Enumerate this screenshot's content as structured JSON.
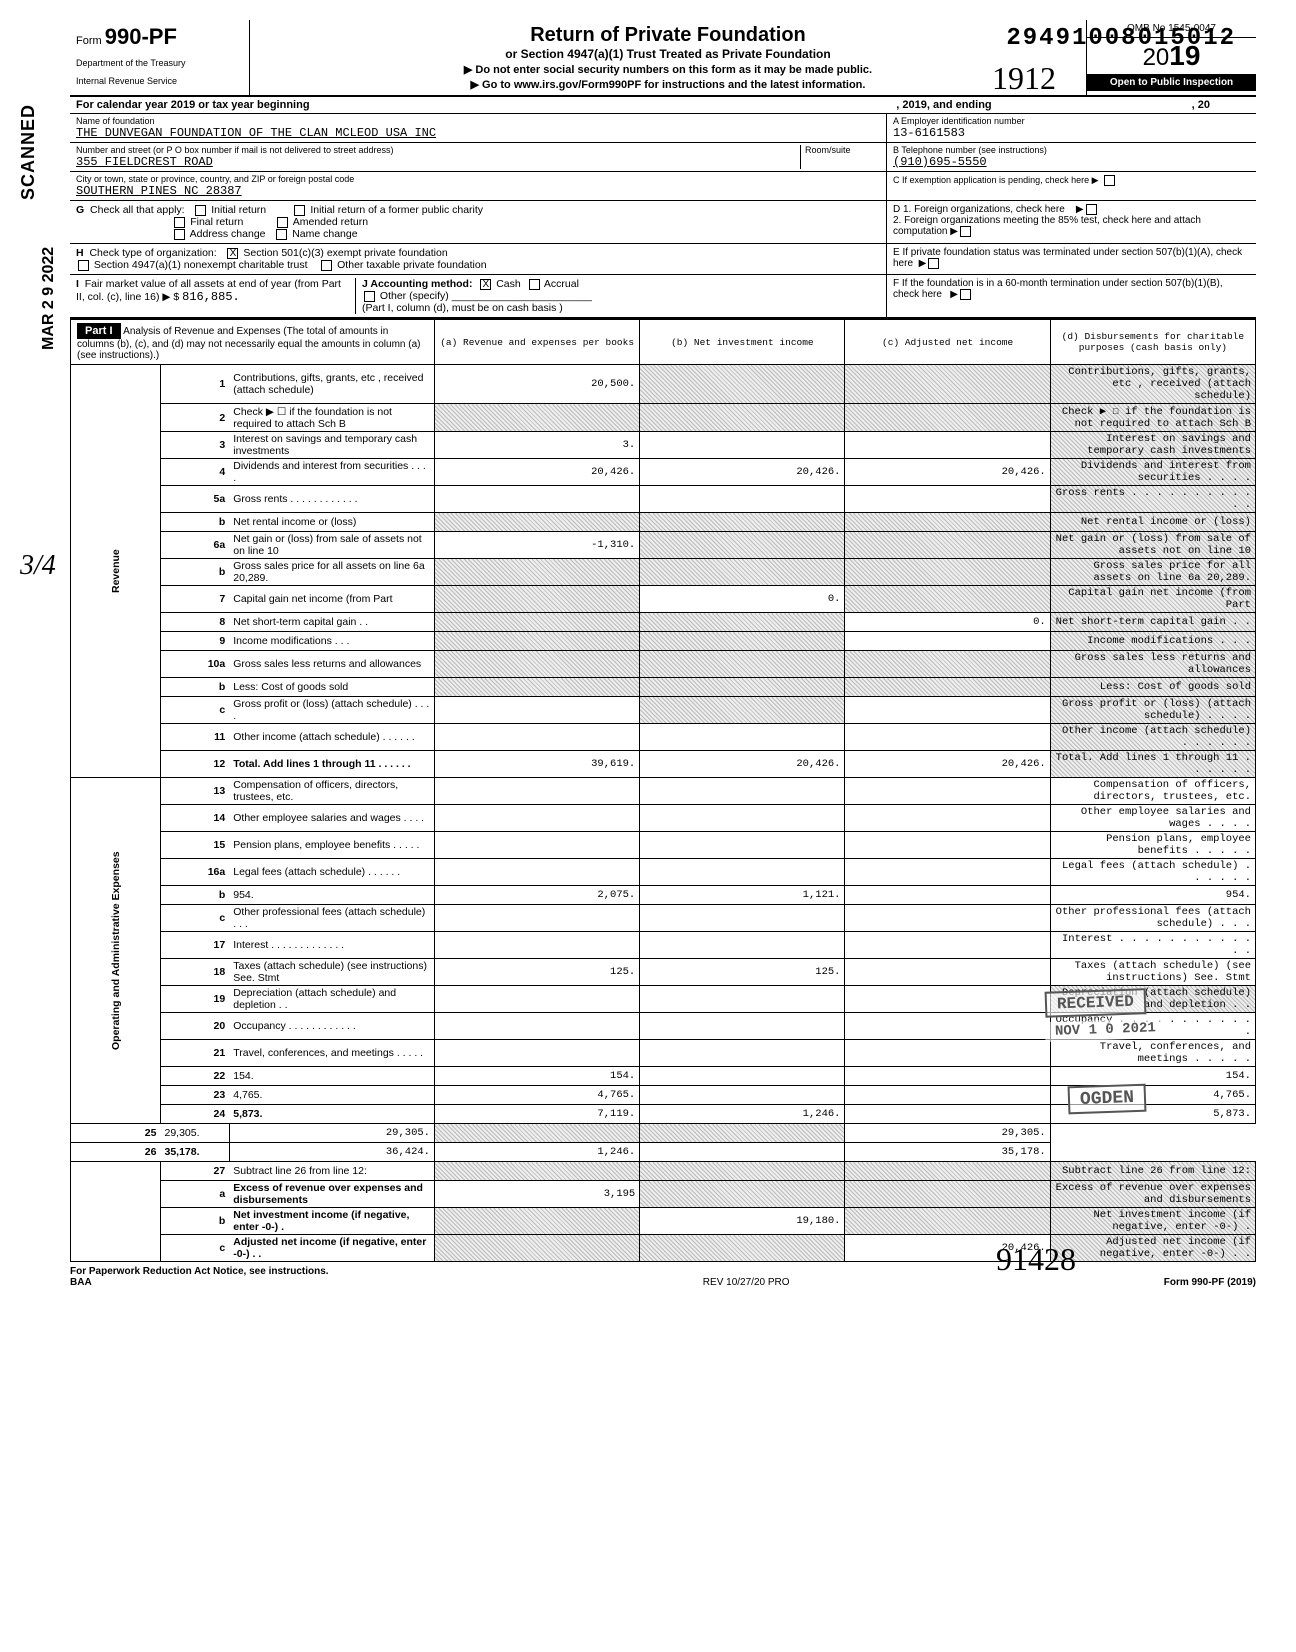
{
  "dln": "29491008015012",
  "scanned_label": "SCANNED",
  "scanned_date": "MAR 2 9 2022",
  "fraction": "3/4",
  "header": {
    "form_prefix": "Form",
    "form_number": "990-PF",
    "dept1": "Department of the Treasury",
    "dept2": "Internal Revenue Service",
    "title": "Return of Private Foundation",
    "subtitle": "or Section 4947(a)(1) Trust Treated as Private Foundation",
    "note1": "▶ Do not enter social security numbers on this form as it may be made public.",
    "note2": "▶ Go to www.irs.gov/Form990PF for instructions and the latest information.",
    "omb": "OMB No  1545-0047",
    "year_prefix": "20",
    "year_bold": "19",
    "open": "Open to Public Inspection"
  },
  "cal": {
    "text1": "For calendar year 2019 or tax year beginning",
    "text2": ", 2019, and ending",
    "text3": ", 20"
  },
  "info": {
    "name_lbl": "Name of foundation",
    "name_val": "THE DUNVEGAN FOUNDATION OF THE CLAN MCLEOD USA INC",
    "addr_lbl": "Number and street (or P O  box number if mail is not delivered to street address)",
    "addr_val": "355 FIELDCREST ROAD",
    "room_lbl": "Room/suite",
    "city_lbl": "City or town, state or province, country, and ZIP or foreign postal code",
    "city_val": "SOUTHERN PINES NC 28387",
    "ein_lbl": "A  Employer identification number",
    "ein_val": "13-6161583",
    "tel_lbl": "B  Telephone number (see instructions)",
    "tel_val": "(910)695-5550",
    "c_lbl": "C  If exemption application is pending, check here ▶"
  },
  "g": {
    "letter": "G",
    "label": "Check all that apply:",
    "opt1": "Initial return",
    "opt2": "Final return",
    "opt3": "Address change",
    "opt4": "Initial return of a former public charity",
    "opt5": "Amended return",
    "opt6": "Name change",
    "d1": "D  1. Foreign organizations, check here",
    "d2": "2. Foreign organizations meeting the 85% test, check here and attach computation"
  },
  "h": {
    "letter": "H",
    "label": "Check type of organization:",
    "opt1": "Section 501(c)(3) exempt private foundation",
    "opt2": "Section 4947(a)(1) nonexempt charitable trust",
    "opt3": "Other taxable private foundation",
    "e": "E  If private foundation status was terminated under section 507(b)(1)(A), check here"
  },
  "i": {
    "letter": "I",
    "label1": "Fair market value of all assets at end of year  (from Part II, col. (c), line 16) ▶ $",
    "fmv": "816,885.",
    "j": "J   Accounting method:",
    "cash": "Cash",
    "accrual": "Accrual",
    "other": "Other (specify)",
    "note": "(Part I, column (d), must be on cash basis )",
    "f": "F  If the foundation is in a 60-month termination under section 507(b)(1)(B), check here"
  },
  "part1": {
    "label": "Part I",
    "desc": "Analysis of Revenue and Expenses (The total of amounts in columns (b), (c), and (d) may not necessarily equal the amounts in column (a) (see instructions).)",
    "col_a": "(a) Revenue and expenses per books",
    "col_b": "(b) Net investment income",
    "col_c": "(c) Adjusted net income",
    "col_d": "(d) Disbursements for charitable purposes (cash basis only)"
  },
  "side": {
    "rev": "Revenue",
    "exp": "Operating and Administrative Expenses"
  },
  "rows": {
    "r1": {
      "n": "1",
      "d": "Contributions, gifts, grants, etc , received (attach schedule)",
      "a": "20,500.",
      "b_sh": true,
      "c_sh": true,
      "d_sh": true
    },
    "r2": {
      "n": "2",
      "d": "Check ▶ ☐ if the foundation is not required to attach Sch  B",
      "a_sh": true,
      "b_sh": true,
      "c_sh": true,
      "d_sh": true
    },
    "r3": {
      "n": "3",
      "d": "Interest on savings and temporary cash investments",
      "a": "3.",
      "d_sh": true
    },
    "r4": {
      "n": "4",
      "d": "Dividends and interest from securities   .   .   .   .",
      "a": "20,426.",
      "b": "20,426.",
      "c": "20,426.",
      "d_sh": true
    },
    "r5a": {
      "n": "5a",
      "d": "Gross rents .   .   .   .   .   .   .   .   .   .   .   .",
      "d_sh": true
    },
    "r5b": {
      "n": "b",
      "d": "Net rental income or (loss)",
      "a_sh": true,
      "b_sh": true,
      "c_sh": true,
      "d_sh": true
    },
    "r6a": {
      "n": "6a",
      "d": "Net gain or (loss) from sale of assets not on line 10",
      "a": "-1,310.",
      "b_sh": true,
      "c_sh": true,
      "d_sh": true
    },
    "r6b": {
      "n": "b",
      "d": "Gross sales price for all assets on line 6a        20,289.",
      "a_sh": true,
      "b_sh": true,
      "c_sh": true,
      "d_sh": true
    },
    "r7": {
      "n": "7",
      "d": "Capital gain net income (from Part",
      "a_sh": true,
      "b": "0.",
      "c_sh": true,
      "d_sh": true
    },
    "r8": {
      "n": "8",
      "d": "Net short-term capital gain .   .",
      "a_sh": true,
      "b_sh": true,
      "c": "0.",
      "d_sh": true
    },
    "r9": {
      "n": "9",
      "d": "Income modifications    .   .   .",
      "a_sh": true,
      "b_sh": true,
      "d_sh": true
    },
    "r10a": {
      "n": "10a",
      "d": "Gross sales less returns and allowances",
      "a_sh": true,
      "b_sh": true,
      "c_sh": true,
      "d_sh": true
    },
    "r10b": {
      "n": "b",
      "d": "Less: Cost of goods sold",
      "a_sh": true,
      "b_sh": true,
      "c_sh": true,
      "d_sh": true
    },
    "r10c": {
      "n": "c",
      "d": "Gross profit or (loss) (attach schedule)  .   .   .   .",
      "b_sh": true,
      "d_sh": true
    },
    "r11": {
      "n": "11",
      "d": "Other income (attach schedule)   .   .   .   .   .   .",
      "d_sh": true
    },
    "r12": {
      "n": "12",
      "d": "Total. Add lines 1 through 11   .   .   .   .   .   .",
      "a": "39,619.",
      "b": "20,426.",
      "c": "20,426.",
      "d_sh": true,
      "bold": true
    },
    "r13": {
      "n": "13",
      "d": "Compensation of officers, directors, trustees, etc."
    },
    "r14": {
      "n": "14",
      "d": "Other employee salaries and wages .   .   .   ."
    },
    "r15": {
      "n": "15",
      "d": "Pension plans, employee benefits   .   .   .   .   ."
    },
    "r16a": {
      "n": "16a",
      "d": "Legal fees (attach schedule)    .   .   .   .   .   ."
    },
    "r16b": {
      "n": "b",
      "d": "954.",
      "a": "2,075.",
      "b": "1,121."
    },
    "r16c": {
      "n": "c",
      "d": "Other professional fees (attach schedule)  .   .   ."
    },
    "r17": {
      "n": "17",
      "d": "Interest   .   .   .   .   .   .   .   .   .   .   .   .   ."
    },
    "r18": {
      "n": "18",
      "d": "Taxes (attach schedule) (see instructions) See. Stmt",
      "a": "125.",
      "b": "125."
    },
    "r19": {
      "n": "19",
      "d": "Depreciation (attach schedule) and depletion .   .",
      "d_sh": true
    },
    "r20": {
      "n": "20",
      "d": "Occupancy .   .   .   .   .   .   .   .   .   .   .   ."
    },
    "r21": {
      "n": "21",
      "d": "Travel, conferences, and meetings   .   .   .   .   ."
    },
    "r22": {
      "n": "22",
      "d": "154.",
      "a": "154."
    },
    "r23": {
      "n": "23",
      "d": "4,765.",
      "a": "4,765."
    },
    "r24": {
      "n": "24",
      "d": "5,873.",
      "a": "7,119.",
      "b": "1,246.",
      "bold": true
    },
    "r25": {
      "n": "25",
      "d": "29,305.",
      "a": "29,305.",
      "b_sh": true,
      "c_sh": true
    },
    "r26": {
      "n": "26",
      "d": "35,178.",
      "a": "36,424.",
      "b": "1,246.",
      "bold": true
    },
    "r27": {
      "n": "27",
      "d": "Subtract line 26 from line 12:",
      "a_sh": true,
      "b_sh": true,
      "c_sh": true,
      "d_sh": true
    },
    "r27a": {
      "n": "a",
      "d": "Excess of revenue over expenses and disbursements",
      "a": "3,195",
      "b_sh": true,
      "c_sh": true,
      "d_sh": true,
      "bold": true
    },
    "r27b": {
      "n": "b",
      "d": "Net investment income (if negative, enter -0-)   .",
      "a_sh": true,
      "b": "19,180.",
      "c_sh": true,
      "d_sh": true,
      "bold": true
    },
    "r27c": {
      "n": "c",
      "d": "Adjusted net income (if negative, enter -0-)  .   .",
      "a_sh": true,
      "b_sh": true,
      "c": "20,426.",
      "d_sh": true,
      "bold": true
    }
  },
  "stamps": {
    "received": "RECEIVED",
    "date": "NOV 1 0 2021",
    "ogden": "OGDEN"
  },
  "hand": {
    "h1": "1912",
    "h2": "91428"
  },
  "footer": {
    "left": "For Paperwork Reduction Act Notice, see instructions.",
    "baa": "BAA",
    "mid": "REV 10/27/20 PRO",
    "right": "Form 990-PF (2019)"
  }
}
